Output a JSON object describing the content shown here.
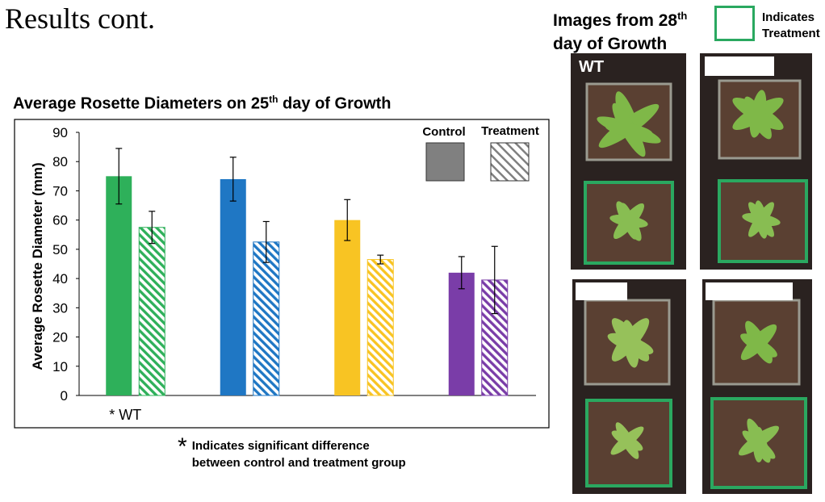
{
  "slide": {
    "title": "Results cont."
  },
  "chart": {
    "title": "Average Rosette Diameters on 25",
    "title_sup": "th",
    "title_end": " day of Growth",
    "ylabel": "Average Rosette Diameter (mm)",
    "legend": {
      "control": "Control",
      "treatment": "Treatment"
    },
    "significance_mark": "*",
    "footnote_line1": "Indicates significant difference",
    "footnote_line2": "between control and treatment group"
  },
  "chart_data": {
    "type": "bar",
    "categories": [
      "WT",
      "",
      "",
      ""
    ],
    "significant": [
      true,
      false,
      false,
      false
    ],
    "ylim": [
      0,
      90
    ],
    "yticks": [
      0,
      10,
      20,
      30,
      40,
      50,
      60,
      70,
      80,
      90
    ],
    "xlabel": "",
    "ylabel": "Average Rosette Diameter (mm)",
    "grid": false,
    "legend_position": "top-right",
    "colors": [
      "#2eb05a",
      "#1f77c4",
      "#f8c423",
      "#7a3da8"
    ],
    "series": [
      {
        "name": "Control",
        "fill": "solid",
        "values": [
          75,
          74,
          60,
          42
        ],
        "errors": [
          9.5,
          7.5,
          7,
          5.5
        ]
      },
      {
        "name": "Treatment",
        "fill": "hatched",
        "values": [
          57.5,
          52.5,
          46.5,
          39.5
        ],
        "errors": [
          5.5,
          7,
          1.5,
          11.5
        ]
      }
    ]
  },
  "photos": {
    "title_line1": "Images from 28",
    "title_sup": "th",
    "title_line2": "day of Growth",
    "legend_text_line1": "Indicates",
    "legend_text_line2": "Treatment",
    "treatment_border_color": "#2aa860",
    "panels": [
      {
        "label": "WT"
      },
      {
        "label": ""
      },
      {
        "label": ""
      },
      {
        "label": ""
      }
    ]
  }
}
